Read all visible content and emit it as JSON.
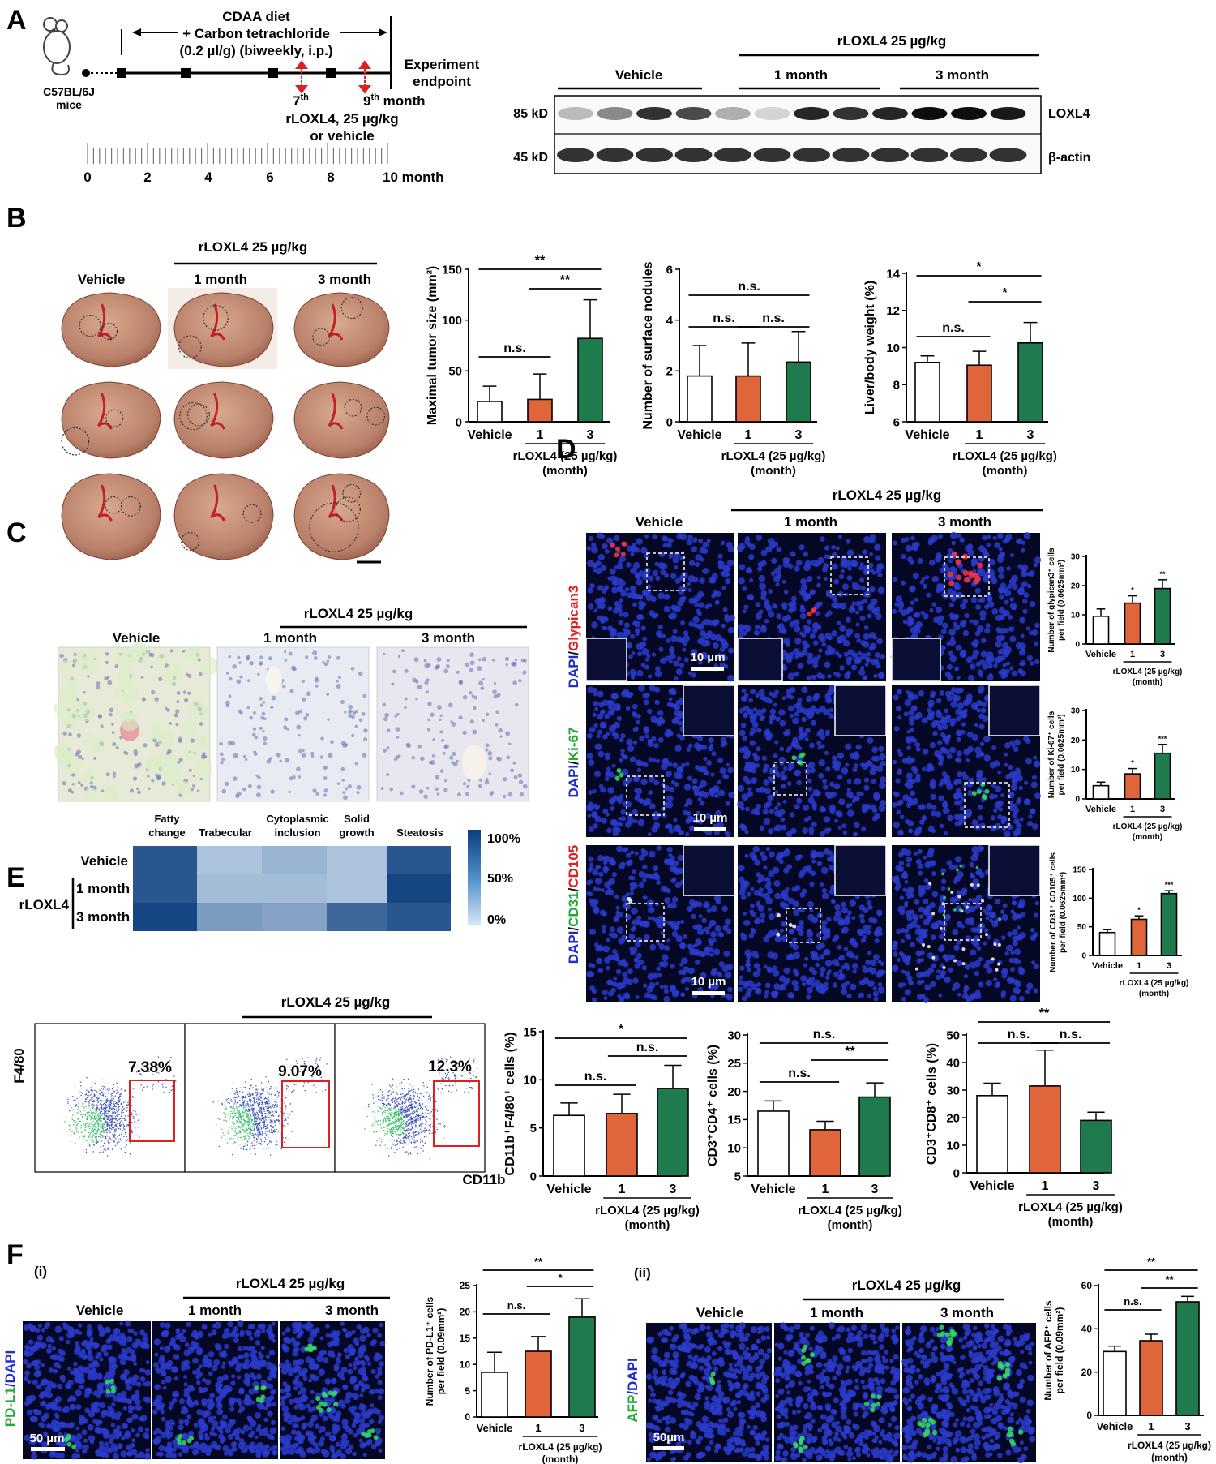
{
  "panels": {
    "A": "A",
    "B": "B",
    "C": "C",
    "D": "D",
    "E": "E",
    "F": "F",
    "Fi": "(i)",
    "Fii": "(ii)"
  },
  "common": {
    "vehicle": "Vehicle",
    "one_month": "1 month",
    "three_month": "3 month",
    "treat_header": "rLOXL4 25 µg/kg",
    "treat_axis": "rLOXL4 (25 µg/kg)",
    "treat_axis_sub": "(month)",
    "ns": "n.s."
  },
  "panelA": {
    "mouse_label": "C57BL/6J",
    "mouse_label2": "mice",
    "diet_line1": "CDAA diet",
    "diet_line2": "+ Carbon tetrachloride",
    "diet_line3": "(0.2 µl/g) (biweekly, i.p.)",
    "endpoint_line1": "Experiment",
    "endpoint_line2": "endpoint",
    "inj_7": "7",
    "inj_th": "th",
    "inj_9": "9",
    "inj_month": " month",
    "inj_line2": "rLOXL4, 25 µg/kg",
    "inj_line3": "or vehicle",
    "ticks": [
      "0",
      "2",
      "4",
      "6",
      "8"
    ],
    "tick_last": "10 month",
    "blot_mw": [
      "85 kD",
      "45 kD"
    ],
    "blot_labels": [
      "LOXL4",
      "β-actin"
    ]
  },
  "panelB": {
    "charts": [
      {
        "type": "bar",
        "ylabel": "Maximal tumor size (mm²)",
        "ylim": [
          0,
          150
        ],
        "yticks": [
          0,
          50,
          100,
          150
        ],
        "categories": [
          "Vehicle",
          "1",
          "3"
        ],
        "values": [
          20,
          22,
          82
        ],
        "errors": [
          15,
          25,
          38
        ],
        "sig": [
          {
            "from": 0,
            "to": 1,
            "label": "n.s."
          },
          {
            "from": 1,
            "to": 2,
            "label": "**"
          },
          {
            "from": 0,
            "to": 2,
            "label": "**"
          }
        ]
      },
      {
        "type": "bar",
        "ylabel": "Number of surface nodules",
        "ylim": [
          0,
          6
        ],
        "yticks": [
          0,
          2,
          4,
          6
        ],
        "categories": [
          "Vehicle",
          "1",
          "3"
        ],
        "values": [
          1.8,
          1.8,
          2.35
        ],
        "errors": [
          1.2,
          1.3,
          1.2
        ],
        "sig": [
          {
            "from": 0,
            "to": 1,
            "label": "n.s."
          },
          {
            "from": 1,
            "to": 2,
            "label": "n.s."
          },
          {
            "from": 0,
            "to": 2,
            "label": "n.s."
          }
        ]
      },
      {
        "type": "bar",
        "ylabel": "Liver/body weight (%)",
        "ylim": [
          6,
          14
        ],
        "yticks": [
          6,
          8,
          10,
          12,
          14
        ],
        "categories": [
          "Vehicle",
          "1",
          "3"
        ],
        "values": [
          9.2,
          9.05,
          10.25
        ],
        "errors": [
          0.35,
          0.75,
          1.1
        ],
        "sig": [
          {
            "from": 0,
            "to": 1,
            "label": "n.s."
          },
          {
            "from": 1,
            "to": 2,
            "label": "*"
          },
          {
            "from": 0,
            "to": 2,
            "label": "*"
          }
        ]
      }
    ]
  },
  "panelC": {
    "columns": [
      "Fatty",
      "change",
      "Trabecular",
      "Cytoplasmic",
      "inclusion",
      "Solid",
      "growth",
      "Steatosis"
    ],
    "row_vehicle": "Vehicle",
    "row_1": "1 month",
    "row_3": "3 month",
    "row_group": "rLOXL4",
    "scale": [
      "100%",
      "50%",
      "0%"
    ],
    "chart_data": {
      "type": "heatmap",
      "rows": [
        "Vehicle",
        "1 month",
        "3 month"
      ],
      "cols": [
        "Fatty change",
        "Trabecular",
        "Cytoplasmic inclusion",
        "Solid growth",
        "Steatosis"
      ],
      "values": [
        [
          0.85,
          0.2,
          0.3,
          0.2,
          0.85
        ],
        [
          0.85,
          0.25,
          0.25,
          0.2,
          0.95
        ],
        [
          0.95,
          0.45,
          0.4,
          0.75,
          0.85
        ]
      ]
    }
  },
  "panelD": {
    "row_labels": [
      {
        "a": "DAPI",
        "sep": "/",
        "b": "Glypican3",
        "bcolor": "#e02020"
      },
      {
        "a": "DAPI",
        "sep": "/",
        "b": "Ki-67",
        "bcolor": "#22aa33"
      },
      {
        "a": "DAPI",
        "sep": "/",
        "b": "CD31",
        "bcolor": "#22aa33",
        "c": "/",
        "d": "CD105",
        "dcolor": "#e02020"
      }
    ],
    "scalebar": "10 µm",
    "charts": [
      {
        "type": "bar",
        "ylabel1": "Number of glypican3⁺ cells",
        "ylabel2": "per field (0.0625mm²)",
        "ylim": [
          0,
          30
        ],
        "yticks": [
          0,
          10,
          20,
          30
        ],
        "categories": [
          "Vehicle",
          "1",
          "3"
        ],
        "values": [
          9.5,
          14,
          19
        ],
        "errors": [
          2.5,
          2.5,
          3
        ],
        "stars": [
          "",
          "*",
          "**"
        ]
      },
      {
        "type": "bar",
        "ylabel1": "Number of Ki-67⁺ cells",
        "ylabel2": "per field (0.0625mm²)",
        "ylim": [
          0,
          30
        ],
        "yticks": [
          0,
          10,
          20,
          30
        ],
        "categories": [
          "Vehicle",
          "1",
          "3"
        ],
        "values": [
          4.5,
          8.5,
          15.5
        ],
        "errors": [
          1.2,
          1.8,
          3
        ],
        "stars": [
          "",
          "*",
          "***"
        ]
      },
      {
        "type": "bar",
        "ylabel1": "Number of CD31⁺ CD105⁺ cells",
        "ylabel2": "per field (0.0625mm²)",
        "ylim": [
          0,
          150
        ],
        "yticks": [
          0,
          50,
          100,
          150
        ],
        "categories": [
          "Vehicle",
          "1",
          "3"
        ],
        "values": [
          40,
          63,
          108
        ],
        "errors": [
          5,
          6,
          5
        ],
        "stars": [
          "",
          "*",
          "***"
        ]
      }
    ]
  },
  "panelE": {
    "flow_ylabel": "F4/80",
    "flow_xlabel": "CD11b",
    "percentages": [
      "7.38%",
      "9.07%",
      "12.3%"
    ],
    "charts": [
      {
        "type": "bar",
        "ylabel": "CD11b⁺F4/80⁺ cells (%)",
        "ylim": [
          0,
          15
        ],
        "yticks": [
          0,
          5,
          10,
          15
        ],
        "categories": [
          "Vehicle",
          "1",
          "3"
        ],
        "values": [
          6.3,
          6.5,
          9.1
        ],
        "errors": [
          1.3,
          2,
          2.4
        ],
        "sig": [
          {
            "from": 0,
            "to": 1,
            "label": "n.s."
          },
          {
            "from": 1,
            "to": 2,
            "label": "n.s."
          },
          {
            "from": 0,
            "to": 2,
            "label": "*"
          }
        ]
      },
      {
        "type": "bar",
        "ylabel": "CD3⁺CD4⁺ cells (%)",
        "ylim": [
          5,
          30
        ],
        "yticks": [
          5,
          10,
          15,
          20,
          25,
          30
        ],
        "categories": [
          "Vehicle",
          "1",
          "3"
        ],
        "values": [
          16.5,
          13.2,
          19
        ],
        "errors": [
          1.8,
          1.5,
          2.5
        ],
        "sig": [
          {
            "from": 0,
            "to": 1,
            "label": "n.s."
          },
          {
            "from": 1,
            "to": 2,
            "label": "**"
          },
          {
            "from": 0,
            "to": 2,
            "label": "n.s."
          }
        ]
      },
      {
        "type": "bar",
        "ylabel": "CD3⁺CD8⁺ cells (%)",
        "ylim": [
          0,
          50
        ],
        "yticks": [
          0,
          10,
          20,
          30,
          40,
          50
        ],
        "categories": [
          "Vehicle",
          "1",
          "3"
        ],
        "values": [
          28,
          31.5,
          19
        ],
        "errors": [
          4.5,
          13,
          3
        ],
        "sig": [
          {
            "from": 0,
            "to": 1,
            "label": "n.s."
          },
          {
            "from": 1,
            "to": 2,
            "label": "n.s."
          },
          {
            "from": 0,
            "to": 2,
            "label": "**"
          }
        ]
      }
    ]
  },
  "panelF": {
    "label_i_a": "PD-L1",
    "label_i_b": "/DAPI",
    "label_ii_a": "AFP",
    "label_ii_b": "/DAPI",
    "scalebar_i": "50 µm",
    "scalebar_ii": "50µm",
    "charts": [
      {
        "type": "bar",
        "ylabel1": "Number of PD-L1⁺ cells",
        "ylabel2": "per field (0.09mm²)",
        "ylim": [
          0,
          25
        ],
        "yticks": [
          0,
          5,
          10,
          15,
          20,
          25
        ],
        "categories": [
          "Vehicle",
          "1",
          "3"
        ],
        "values": [
          8.5,
          12.5,
          19
        ],
        "errors": [
          3.8,
          2.8,
          3.5
        ],
        "sig": [
          {
            "from": 0,
            "to": 1,
            "label": "n.s."
          },
          {
            "from": 1,
            "to": 2,
            "label": "*"
          },
          {
            "from": 0,
            "to": 2,
            "label": "**"
          }
        ]
      },
      {
        "type": "bar",
        "ylabel1": "Number of AFP⁺ cells",
        "ylabel2": "per field (0.09mm²)",
        "ylim": [
          0,
          60
        ],
        "yticks": [
          0,
          20,
          40,
          60
        ],
        "categories": [
          "Vehicle",
          "1",
          "3"
        ],
        "values": [
          29.5,
          34.5,
          52.5
        ],
        "errors": [
          2.5,
          3,
          2.5
        ],
        "sig": [
          {
            "from": 0,
            "to": 1,
            "label": "n.s."
          },
          {
            "from": 1,
            "to": 2,
            "label": "**"
          },
          {
            "from": 0,
            "to": 2,
            "label": "**"
          }
        ]
      }
    ]
  }
}
